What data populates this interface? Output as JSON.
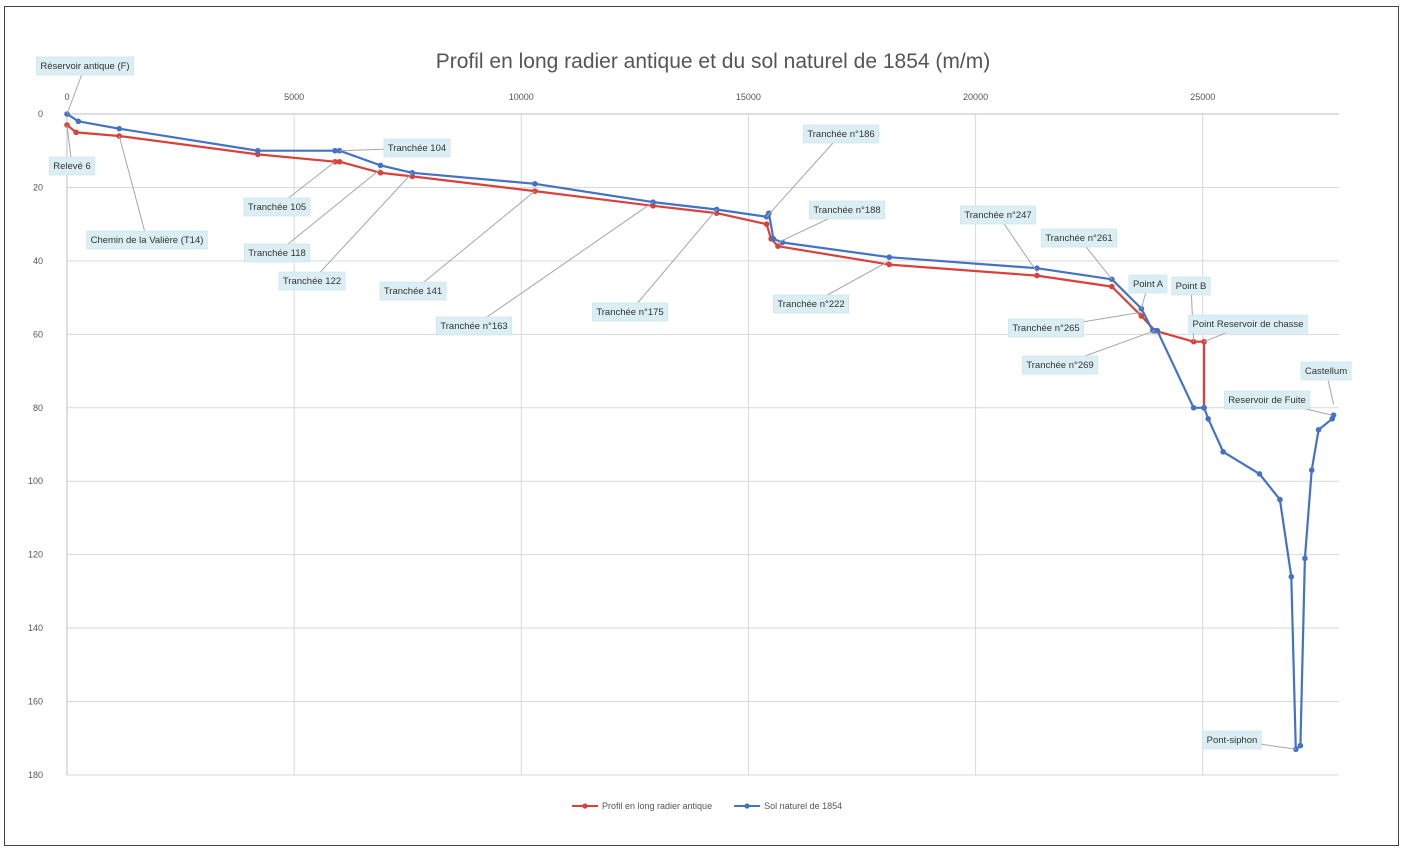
{
  "chart_data": {
    "type": "line",
    "title": "Profil en long radier antique et du sol naturel de 1854 (m/m)",
    "xlim": [
      0,
      28000
    ],
    "ylim": [
      0,
      180
    ],
    "y_inverted": true,
    "x_ticks": [
      "5000",
      "10000",
      "15000",
      "20000",
      "25000"
    ],
    "x_tick_values": [
      5000,
      10000,
      15000,
      20000,
      25000
    ],
    "x_zero_label": "0",
    "y_ticks": [
      "0",
      "20",
      "40",
      "60",
      "80",
      "100",
      "120",
      "140",
      "160",
      "180"
    ],
    "y_tick_values": [
      0,
      20,
      40,
      60,
      80,
      100,
      120,
      140,
      160,
      180
    ],
    "grid": true,
    "legend_position": "bottom",
    "series": [
      {
        "name": "Profil en long radier antique",
        "color": "#d9413b",
        "x": [
          0,
          200,
          1150,
          4200,
          5900,
          6000,
          6900,
          7600,
          10300,
          12900,
          14300,
          15400,
          15500,
          15650,
          18100,
          21350,
          23000,
          23650,
          23950,
          24800,
          25030,
          25030
        ],
        "y": [
          3,
          5,
          6,
          11,
          13,
          13,
          16,
          17,
          21,
          25,
          27,
          30,
          34,
          36,
          41,
          44,
          47,
          55,
          59,
          62,
          62,
          80
        ]
      },
      {
        "name": "Sol naturel de 1854",
        "color": "#4472c4",
        "x": [
          0,
          250,
          1150,
          4200,
          5900,
          6000,
          6900,
          7600,
          10300,
          12900,
          14300,
          15400,
          15450,
          15550,
          15750,
          18100,
          21350,
          23000,
          23650,
          23900,
          24000,
          24800,
          25030,
          25120,
          25450,
          26250,
          26700,
          26950,
          27050,
          27150,
          27250,
          27400,
          27550,
          27850,
          27880
        ],
        "y": [
          0,
          2,
          4,
          10,
          10,
          10,
          14,
          16,
          19,
          24,
          26,
          28,
          27,
          34,
          35,
          39,
          42,
          45,
          53,
          59,
          59,
          80,
          80,
          83,
          92,
          98,
          105,
          126,
          173,
          172,
          121,
          97,
          86,
          83,
          82
        ]
      }
    ],
    "annotations": [
      {
        "text": "Réservoir antique (F)",
        "x": 0,
        "y": 0
      },
      {
        "text": "Relevé 6",
        "x": 0,
        "y": 3
      },
      {
        "text": "Chemin de la Valière (T14)",
        "x": 1150,
        "y": 6
      },
      {
        "text": "Tranchée 105",
        "x": 5900,
        "y": 13
      },
      {
        "text": "Tranchée 104",
        "x": 6000,
        "y": 10
      },
      {
        "text": "Tranchée 118",
        "x": 6900,
        "y": 15
      },
      {
        "text": "Tranchée 122",
        "x": 7600,
        "y": 16
      },
      {
        "text": "Tranchée 141",
        "x": 10300,
        "y": 21
      },
      {
        "text": "Tranchée n°163",
        "x": 12900,
        "y": 24
      },
      {
        "text": "Tranchée n°175",
        "x": 14300,
        "y": 26
      },
      {
        "text": "Tranchée n°186",
        "x": 15400,
        "y": 28
      },
      {
        "text": "Tranchée n°188",
        "x": 15650,
        "y": 35
      },
      {
        "text": "Tranchée n°222",
        "x": 18100,
        "y": 40
      },
      {
        "text": "Tranchée n°247",
        "x": 21350,
        "y": 43
      },
      {
        "text": "Tranchée n°261",
        "x": 23000,
        "y": 45
      },
      {
        "text": "Point A",
        "x": 23650,
        "y": 53
      },
      {
        "text": "Point B",
        "x": 24800,
        "y": 62
      },
      {
        "text": "Tranchée n°265",
        "x": 23650,
        "y": 54
      },
      {
        "text": "Tranchée n°269",
        "x": 23950,
        "y": 59
      },
      {
        "text": "Point Reservoir de chasse",
        "x": 25030,
        "y": 62
      },
      {
        "text": "Castellum",
        "x": 27880,
        "y": 79
      },
      {
        "text": "Reservoir de Fuite",
        "x": 27850,
        "y": 82
      },
      {
        "text": "Pont-siphon",
        "x": 27050,
        "y": 173
      }
    ]
  }
}
